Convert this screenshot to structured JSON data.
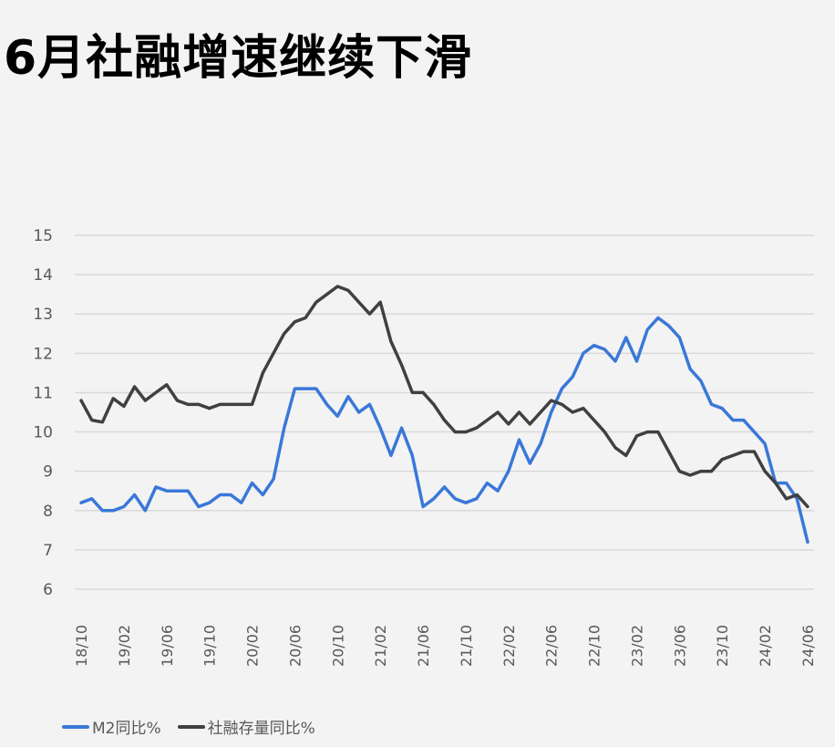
{
  "title": "6月社融增速继续下滑",
  "legend": {
    "items": [
      {
        "label": "M2同比%",
        "color": "#3a78d8"
      },
      {
        "label": "社融存量同比%",
        "color": "#404040"
      }
    ]
  },
  "chart_data": {
    "type": "line",
    "title": "6月社融增速继续下滑",
    "xlabel": "",
    "ylabel": "",
    "ylim": [
      6,
      15
    ],
    "yticks": [
      15,
      14,
      13,
      12,
      11,
      10,
      9,
      8,
      7,
      6
    ],
    "grid": true,
    "legend_position": "bottom-left",
    "x_tick_labels": [
      "18/10",
      "19/02",
      "19/06",
      "19/10",
      "20/02",
      "20/06",
      "20/10",
      "21/02",
      "21/06",
      "21/10",
      "22/02",
      "22/06",
      "22/10",
      "23/02",
      "23/06",
      "23/10",
      "24/02",
      "24/06"
    ],
    "x_start": "18/10",
    "x_end": "24/06",
    "frequency": "monthly",
    "series": [
      {
        "name": "M2同比%",
        "color": "#3a78d8",
        "values": [
          8.2,
          8.3,
          8.0,
          8.0,
          8.1,
          8.4,
          8.0,
          8.6,
          8.5,
          8.5,
          8.5,
          8.1,
          8.2,
          8.4,
          8.4,
          8.2,
          8.7,
          8.4,
          8.8,
          10.1,
          11.1,
          11.1,
          11.1,
          10.7,
          10.4,
          10.9,
          10.5,
          10.7,
          10.1,
          9.4,
          10.1,
          9.4,
          8.1,
          8.3,
          8.6,
          8.3,
          8.2,
          8.3,
          8.7,
          8.5,
          9.0,
          9.8,
          9.2,
          9.7,
          10.5,
          11.1,
          11.4,
          12.0,
          12.2,
          12.1,
          11.8,
          12.4,
          11.8,
          12.6,
          12.9,
          12.7,
          12.4,
          11.6,
          11.3,
          10.7,
          10.6,
          10.3,
          10.3,
          10.0,
          9.7,
          8.7,
          8.7,
          8.3,
          7.2
        ]
      },
      {
        "name": "社融存量同比%",
        "color": "#404040",
        "values": [
          10.8,
          10.3,
          10.25,
          10.85,
          10.65,
          11.15,
          10.8,
          11.0,
          11.2,
          10.8,
          10.7,
          10.7,
          10.6,
          10.7,
          10.7,
          10.7,
          10.7,
          11.5,
          12.0,
          12.5,
          12.8,
          12.9,
          13.3,
          13.5,
          13.7,
          13.6,
          13.3,
          13.0,
          13.3,
          12.3,
          11.7,
          11.0,
          11.0,
          10.7,
          10.3,
          10.0,
          10.0,
          10.1,
          10.3,
          10.5,
          10.2,
          10.5,
          10.2,
          10.5,
          10.8,
          10.7,
          10.5,
          10.6,
          10.3,
          10.0,
          9.6,
          9.4,
          9.9,
          10.0,
          10.0,
          9.5,
          9.0,
          8.9,
          9.0,
          9.0,
          9.3,
          9.4,
          9.5,
          9.5,
          9.0,
          8.7,
          8.3,
          8.4,
          8.1
        ]
      }
    ]
  }
}
